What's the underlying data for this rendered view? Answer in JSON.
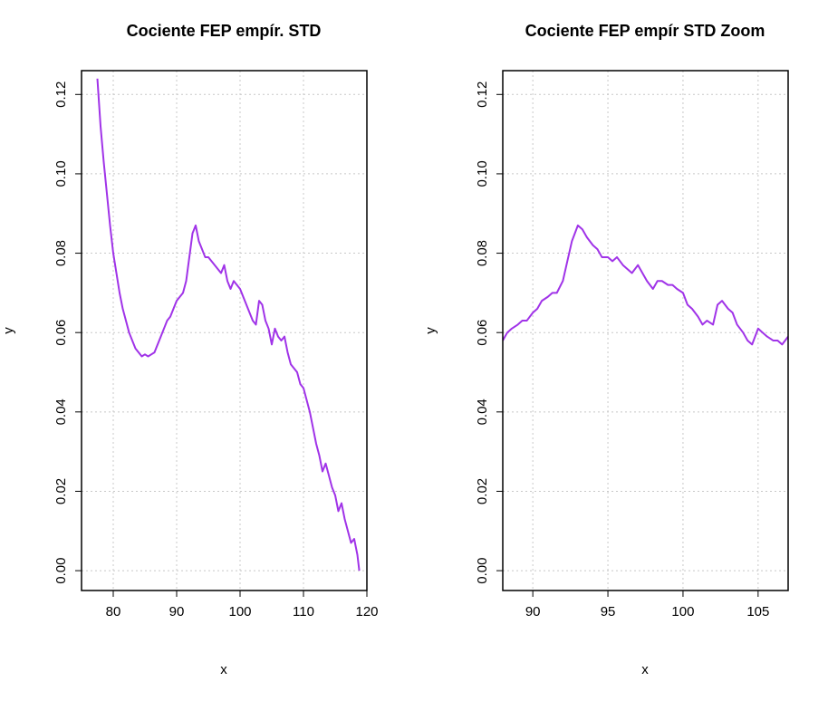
{
  "chart_data": [
    {
      "type": "line",
      "title": "Cociente FEP empír. STD",
      "xlabel": "x",
      "ylabel": "y",
      "xlim": [
        75,
        120
      ],
      "ylim": [
        -0.005,
        0.126
      ],
      "xticks": [
        80,
        90,
        100,
        110,
        120
      ],
      "yticks": [
        0.0,
        0.02,
        0.04,
        0.06,
        0.08,
        0.1,
        0.12
      ],
      "xtick_labels": [
        "80",
        "90",
        "100",
        "110",
        "120"
      ],
      "ytick_labels": [
        "0.00",
        "0.02",
        "0.04",
        "0.06",
        "0.08",
        "0.10",
        "0.12"
      ],
      "grid": true,
      "color": "#a033e8",
      "series": [
        {
          "x": [
            77.5,
            78,
            78.5,
            79,
            79.5,
            80,
            80.5,
            81,
            81.5,
            82,
            82.5,
            83,
            83.5,
            84,
            84.5,
            85,
            85.5,
            86,
            86.5,
            87,
            87.5,
            88,
            88.5,
            89,
            89.5,
            90,
            90.5,
            91,
            91.5,
            92,
            92.5,
            93,
            93.5,
            94,
            94.5,
            95,
            95.5,
            96,
            96.5,
            97,
            97.5,
            98,
            98.5,
            99,
            99.5,
            100,
            100.5,
            101,
            101.5,
            102,
            102.5,
            103,
            103.5,
            104,
            104.5,
            105,
            105.5,
            106,
            106.5,
            107,
            107.5,
            108,
            108.5,
            109,
            109.5,
            110,
            110.5,
            111,
            111.5,
            112,
            112.5,
            113,
            113.5,
            114,
            114.5,
            115,
            115.5,
            116,
            116.5,
            117,
            117.5,
            118,
            118.5,
            118.8
          ],
          "y": [
            0.124,
            0.112,
            0.103,
            0.095,
            0.087,
            0.08,
            0.075,
            0.07,
            0.066,
            0.063,
            0.06,
            0.058,
            0.056,
            0.055,
            0.054,
            0.0545,
            0.054,
            0.0545,
            0.055,
            0.057,
            0.059,
            0.061,
            0.063,
            0.064,
            0.066,
            0.068,
            0.069,
            0.07,
            0.073,
            0.079,
            0.085,
            0.087,
            0.083,
            0.081,
            0.079,
            0.079,
            0.078,
            0.077,
            0.076,
            0.075,
            0.077,
            0.073,
            0.071,
            0.073,
            0.072,
            0.071,
            0.069,
            0.067,
            0.065,
            0.063,
            0.062,
            0.068,
            0.067,
            0.063,
            0.061,
            0.057,
            0.061,
            0.059,
            0.058,
            0.059,
            0.055,
            0.052,
            0.051,
            0.05,
            0.047,
            0.046,
            0.043,
            0.04,
            0.036,
            0.032,
            0.029,
            0.025,
            0.027,
            0.024,
            0.021,
            0.019,
            0.015,
            0.017,
            0.013,
            0.01,
            0.007,
            0.008,
            0.004,
            0.0
          ]
        }
      ]
    },
    {
      "type": "line",
      "title": "Cociente FEP empír STD Zoom",
      "xlabel": "x",
      "ylabel": "y",
      "xlim": [
        88,
        107
      ],
      "ylim": [
        -0.005,
        0.126
      ],
      "xticks": [
        90,
        95,
        100,
        105
      ],
      "yticks": [
        0.0,
        0.02,
        0.04,
        0.06,
        0.08,
        0.1,
        0.12
      ],
      "xtick_labels": [
        "90",
        "95",
        "100",
        "105"
      ],
      "ytick_labels": [
        "0.00",
        "0.02",
        "0.04",
        "0.06",
        "0.08",
        "0.10",
        "0.12"
      ],
      "grid": true,
      "color": "#a033e8",
      "series": [
        {
          "x": [
            88,
            88.3,
            88.6,
            89,
            89.3,
            89.6,
            90,
            90.3,
            90.6,
            91,
            91.3,
            91.6,
            92,
            92.3,
            92.6,
            93,
            93.3,
            93.6,
            94,
            94.3,
            94.6,
            95,
            95.3,
            95.6,
            96,
            96.3,
            96.6,
            97,
            97.3,
            97.6,
            98,
            98.3,
            98.6,
            99,
            99.3,
            99.6,
            100,
            100.3,
            100.6,
            101,
            101.3,
            101.6,
            102,
            102.3,
            102.6,
            103,
            103.3,
            103.6,
            104,
            104.3,
            104.6,
            105,
            105.3,
            105.6,
            106,
            106.3,
            106.6,
            107
          ],
          "y": [
            0.058,
            0.06,
            0.061,
            0.062,
            0.063,
            0.063,
            0.065,
            0.066,
            0.068,
            0.069,
            0.07,
            0.07,
            0.073,
            0.078,
            0.083,
            0.087,
            0.086,
            0.084,
            0.082,
            0.081,
            0.079,
            0.079,
            0.078,
            0.079,
            0.077,
            0.076,
            0.075,
            0.077,
            0.075,
            0.073,
            0.071,
            0.073,
            0.073,
            0.072,
            0.072,
            0.071,
            0.07,
            0.067,
            0.066,
            0.064,
            0.062,
            0.063,
            0.062,
            0.067,
            0.068,
            0.066,
            0.065,
            0.062,
            0.06,
            0.058,
            0.057,
            0.061,
            0.06,
            0.059,
            0.058,
            0.058,
            0.057,
            0.059
          ]
        }
      ]
    }
  ]
}
